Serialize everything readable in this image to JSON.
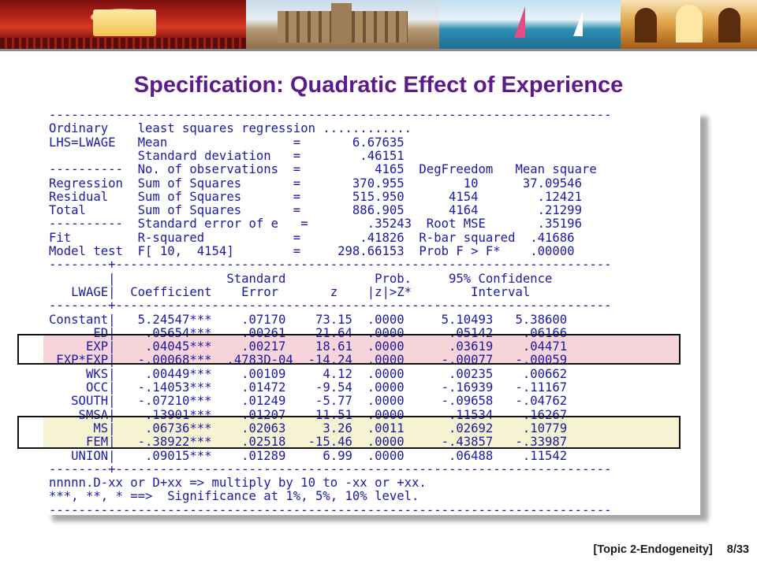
{
  "slide": {
    "title": "Specification: Quadratic Effect of Experience",
    "footer_label": "[Topic 2-Endogeneity]",
    "page_number": "8/33"
  },
  "output_lines": [
    "----------------------------------------------------------------------------",
    "Ordinary    least squares regression ............",
    "LHS=LWAGE   Mean                 =       6.67635",
    "            Standard deviation   =        .46151",
    "----------  No. of observations  =          4165  DegFreedom   Mean square",
    "Regression  Sum of Squares       =       370.955        10      37.09546",
    "Residual    Sum of Squares       =       515.950      4154        .12421",
    "Total       Sum of Squares       =       886.905      4164        .21299",
    "----------  Standard error of e   =        .35243  Root MSE       .35196",
    "Fit         R-squared            =        .41826  R-bar squared  .41686",
    "Model test  F[ 10,  4154]        =     298.66153  Prob F > F*    .00000",
    "--------+-------------------------------------------------------------------",
    "        |               Standard            Prob.     95% Confidence",
    "   LWAGE|  Coefficient    Error       z    |z|>Z*        Interval",
    "--------+-------------------------------------------------------------------",
    "Constant|   5.24547***    .07170    73.15  .0000     5.10493   5.38600",
    "      ED|    .05654***    .00261    21.64  .0000      .05142    .06166",
    "     EXP|    .04045***    .00217    18.61  .0000      .03619    .04471",
    " EXP*EXP|   -.00068***  .4783D-04  -14.24  .0000     -.00077   -.00059",
    "     WKS|    .00449***    .00109     4.12  .0000      .00235    .00662",
    "     OCC|   -.14053***    .01472    -9.54  .0000     -.16939   -.11167",
    "   SOUTH|   -.07210***    .01249    -5.77  .0000     -.09658   -.04762",
    "    SMSA|    .13901***    .01207    11.51  .0000      .11534    .16267",
    "      MS|    .06736***    .02063     3.26  .0011      .02692    .10779",
    "     FEM|   -.38922***    .02518   -15.46  .0000     -.43857   -.33987",
    "   UNION|    .09015***    .01289     6.99  .0000      .06488    .11542",
    "--------+-------------------------------------------------------------------",
    "nnnnn.D-xx or D+xx => multiply by 10 to -xx or +xx.",
    "***, **, * ==>  Significance at 1%, 5%, 10% level.",
    "----------------------------------------------------------------------------"
  ],
  "colors": {
    "title": "#5c1a8a",
    "output_text": "#1a1aa6",
    "highlight_exp": "#f7d4d9",
    "highlight_ms_fem": "#f6f3d2"
  }
}
